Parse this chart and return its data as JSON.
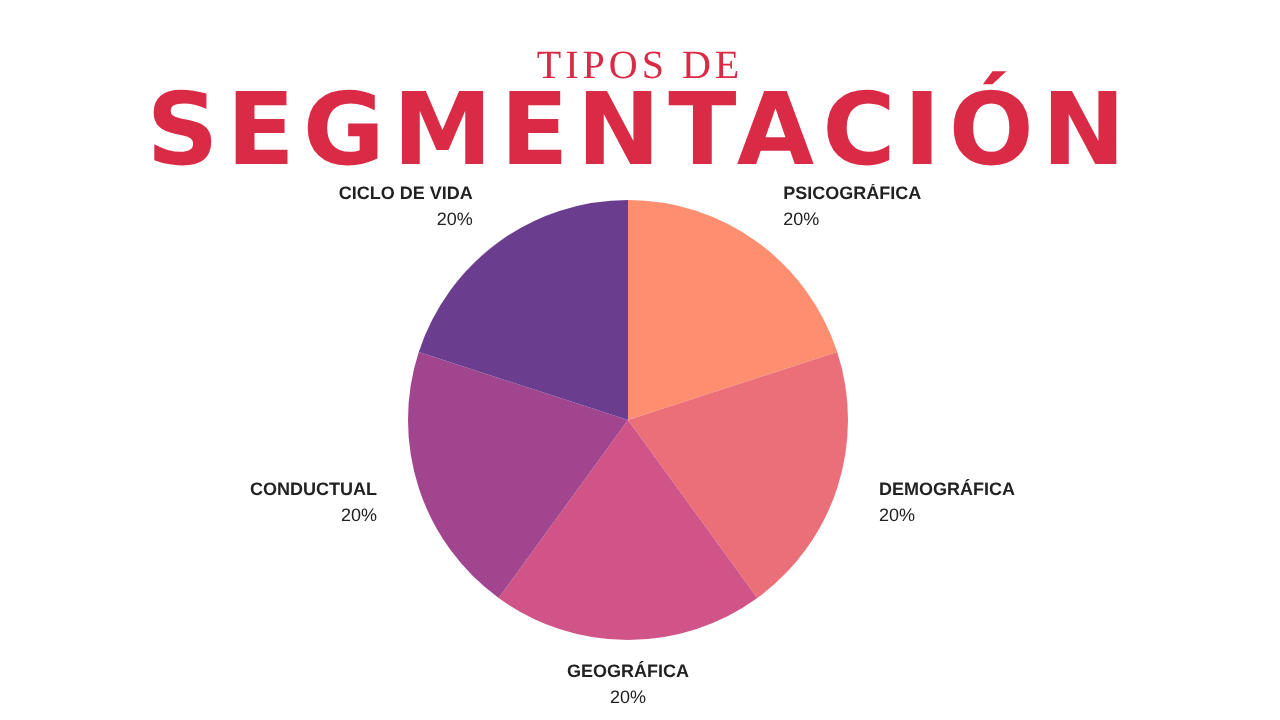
{
  "chart_data": {
    "type": "pie",
    "title": "TIPOS DE",
    "subtitle": "SEGMENTACIÓN",
    "categories": [
      "PSICOGRÁFICA",
      "DEMOGRÁFICA",
      "GEOGRÁFICA",
      "CONDUCTUAL",
      "CICLO DE VIDA"
    ],
    "values": [
      20,
      20,
      20,
      20,
      20
    ],
    "colors": [
      "#fd8f70",
      "#ea6f79",
      "#d05487",
      "#a2458f",
      "#6a3d8f"
    ],
    "value_labels": [
      "20%",
      "20%",
      "20%",
      "20%",
      "20%"
    ],
    "legend": false
  }
}
